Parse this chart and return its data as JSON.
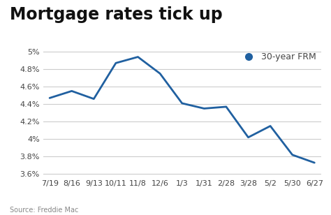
{
  "title": "Mortgage rates tick up",
  "source": "Source: Freddie Mac",
  "legend_label": "30-year FRM",
  "legend_color": "#2060a0",
  "line_color": "#2060a0",
  "line_width": 2.0,
  "background_color": "#ffffff",
  "x_labels": [
    "7/19",
    "8/16",
    "9/13",
    "10/11",
    "11/8",
    "12/6",
    "1/3",
    "1/31",
    "2/28",
    "3/28",
    "5/2",
    "5/30",
    "6/27"
  ],
  "y_values": [
    4.47,
    4.55,
    4.46,
    4.87,
    4.94,
    4.75,
    4.41,
    4.35,
    4.37,
    4.02,
    4.15,
    3.82,
    3.73
  ],
  "ylim": [
    3.55,
    5.05
  ],
  "yticks": [
    3.6,
    3.8,
    4.0,
    4.2,
    4.4,
    4.6,
    4.8,
    5.0
  ],
  "title_fontsize": 17,
  "tick_fontsize": 8,
  "source_fontsize": 7,
  "legend_fontsize": 9,
  "grid_color": "#cccccc",
  "tick_color": "#444444",
  "source_color": "#888888"
}
